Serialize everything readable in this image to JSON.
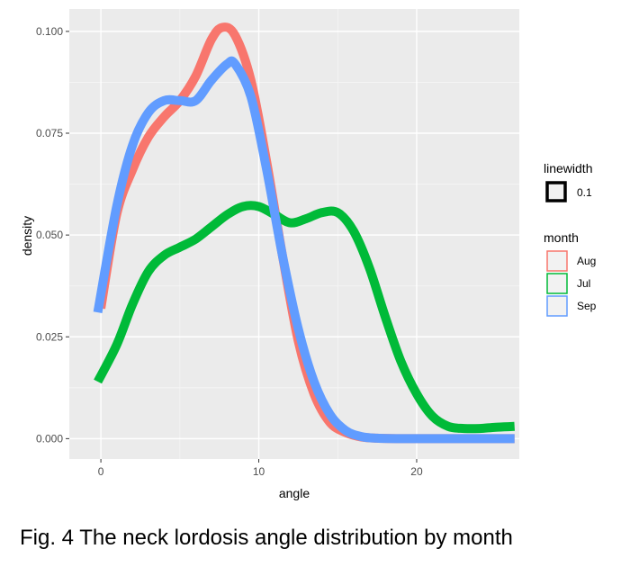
{
  "chart_data": {
    "type": "line",
    "xlabel": "angle",
    "ylabel": "density",
    "xlim": [
      -2,
      26.5
    ],
    "ylim": [
      -0.005,
      0.1055
    ],
    "x_ticks": [
      0,
      10,
      20
    ],
    "x_tick_labels": [
      "0",
      "10",
      "20"
    ],
    "y_ticks": [
      0,
      0.025,
      0.05,
      0.075,
      0.1
    ],
    "y_tick_labels": [
      "0.000",
      "0.025",
      "0.050",
      "0.075",
      "0.100"
    ],
    "grid": true,
    "legend_position": "right",
    "legends": [
      {
        "title": "linewidth",
        "entries": [
          "0.1"
        ]
      },
      {
        "title": "month",
        "entries": [
          "Aug",
          "Jul",
          "Sep"
        ]
      }
    ],
    "series": [
      {
        "name": "Aug",
        "color": "#F8766D",
        "x": [
          0,
          1,
          2,
          3,
          4,
          5,
          6,
          7,
          7.7,
          8.5,
          9.5,
          10.5,
          11.5,
          12.5,
          13.5,
          14.5,
          15.5,
          16.5,
          17.5,
          19,
          21,
          23,
          25,
          26.2
        ],
        "y": [
          0.032,
          0.055,
          0.066,
          0.074,
          0.079,
          0.083,
          0.089,
          0.098,
          0.101,
          0.099,
          0.088,
          0.068,
          0.045,
          0.024,
          0.011,
          0.004,
          0.0015,
          0.0004,
          0.0001,
          0,
          0,
          0,
          0,
          0
        ]
      },
      {
        "name": "Jul",
        "color": "#00BA38",
        "x": [
          -0.2,
          1,
          2,
          3,
          4,
          5,
          6,
          7,
          8,
          9,
          10,
          11,
          12,
          13,
          14,
          15,
          16,
          17,
          18,
          19,
          20,
          21,
          22,
          23,
          24,
          25,
          26.2
        ],
        "y": [
          0.014,
          0.023,
          0.033,
          0.041,
          0.045,
          0.047,
          0.049,
          0.052,
          0.055,
          0.057,
          0.057,
          0.055,
          0.053,
          0.054,
          0.0555,
          0.0555,
          0.051,
          0.042,
          0.03,
          0.019,
          0.011,
          0.0055,
          0.003,
          0.0025,
          0.0025,
          0.0028,
          0.003
        ]
      },
      {
        "name": "Sep",
        "color": "#619CFF",
        "x": [
          -0.2,
          1,
          2,
          3,
          4,
          5,
          6,
          7,
          8,
          8.5,
          9.5,
          10.5,
          11.5,
          12.5,
          13.5,
          14.5,
          15.5,
          16.5,
          17.5,
          19,
          21,
          23,
          25,
          26.2
        ],
        "y": [
          0.031,
          0.057,
          0.072,
          0.08,
          0.083,
          0.083,
          0.083,
          0.088,
          0.092,
          0.092,
          0.084,
          0.066,
          0.045,
          0.027,
          0.014,
          0.006,
          0.002,
          0.0005,
          0.0001,
          0,
          0,
          0,
          0,
          0
        ]
      }
    ]
  },
  "caption": "Fig. 4 The neck lordosis angle distribution by month"
}
